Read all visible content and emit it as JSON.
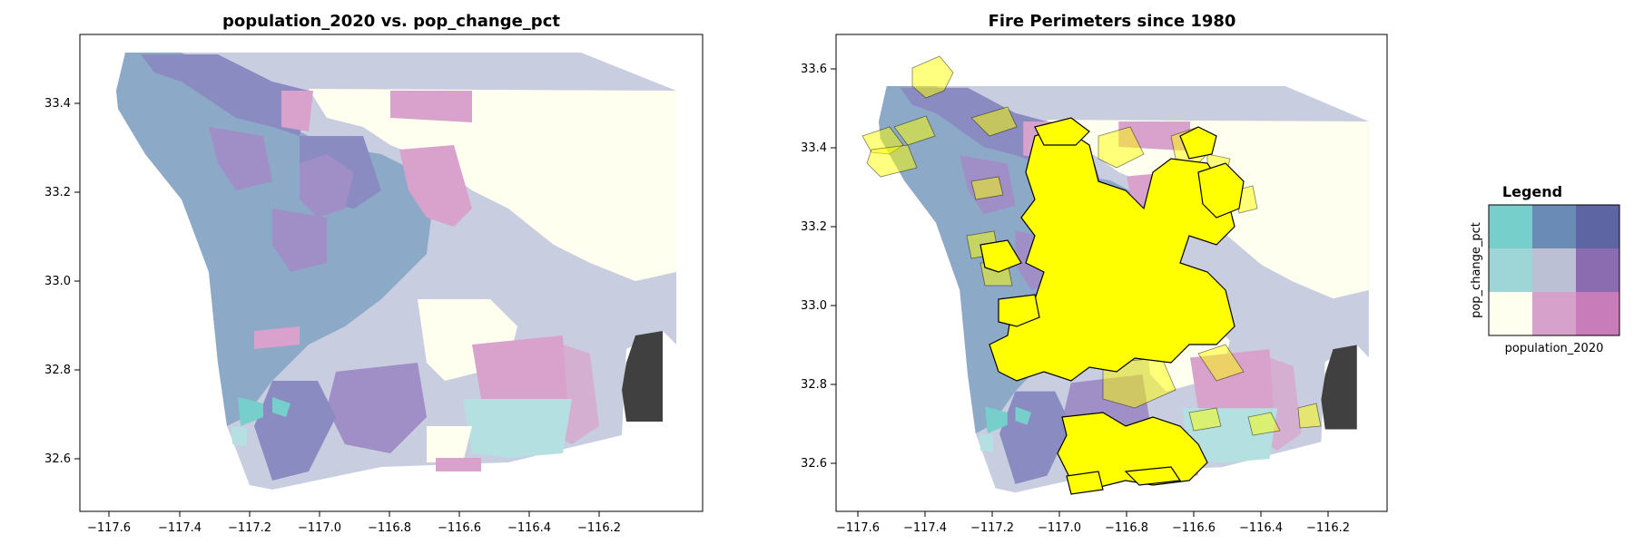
{
  "colors": {
    "bivariate": {
      "low_pop_high_change": "#77cfcc",
      "mid_pop_high_change": "#6a8bb6",
      "high_pop_high_change": "#5e65a3",
      "low_pop_mid_change": "#9ed6d8",
      "mid_pop_mid_change": "#bbc0d5",
      "high_pop_mid_change": "#8b6cb0",
      "low_pop_low_change": "#fffff0",
      "mid_pop_low_change": "#d6a2cc",
      "high_pop_low_change": "#c87cba"
    },
    "missing": "#404040",
    "fire_fill": "#ffff00",
    "fire_stroke": "#000000"
  },
  "maps": [
    {
      "title": "population_2020 vs. pop_change_pct",
      "xticks": [
        "−117.6",
        "−117.4",
        "−117.2",
        "−117.0",
        "−116.8",
        "−116.6",
        "−116.4",
        "−116.2"
      ],
      "yticks": [
        "33.4",
        "33.2",
        "33.0",
        "32.8",
        "32.6"
      ]
    },
    {
      "title": "Fire Perimeters since 1980",
      "xticks": [
        "−117.6",
        "−117.4",
        "−117.2",
        "−117.0",
        "−116.8",
        "−116.6",
        "−116.4",
        "−116.2"
      ],
      "yticks": [
        "33.6",
        "33.4",
        "33.2",
        "33.0",
        "32.8",
        "32.6"
      ]
    }
  ],
  "legend": {
    "title": "Legend",
    "xlabel": "population_2020",
    "ylabel": "pop_change_pct"
  }
}
